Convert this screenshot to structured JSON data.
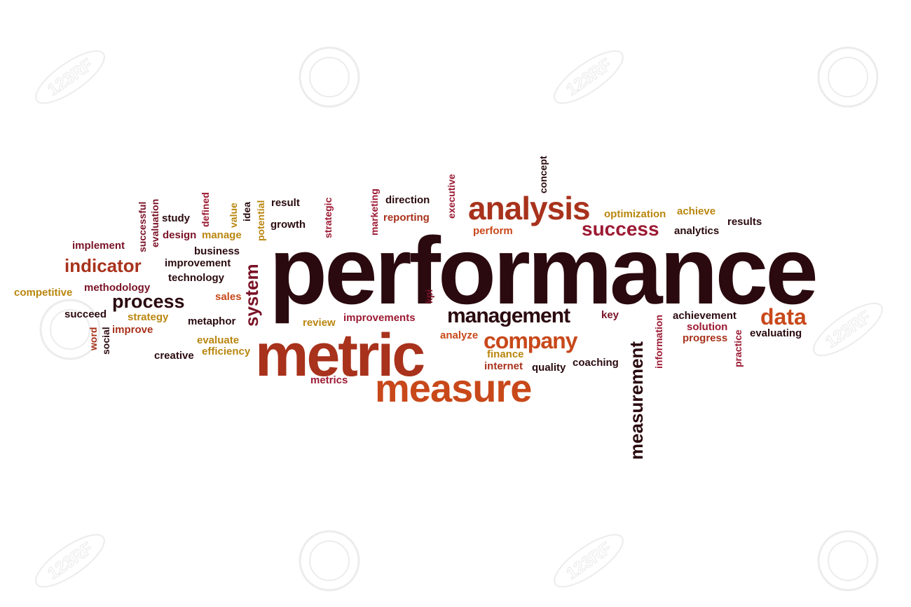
{
  "palette": {
    "dark": "#2a0a0f",
    "maroon": "#7a1226",
    "rust": "#a8321c",
    "orange": "#c8481a",
    "gold": "#b9860f",
    "crimson": "#9c1a33"
  },
  "watermark_text": "123RF",
  "words": {
    "performance": "performance",
    "metric": "metric",
    "measure": "measure",
    "analysis": "analysis",
    "success": "success",
    "management": "management",
    "company": "company",
    "data": "data",
    "indicator": "indicator",
    "process": "process",
    "system": "system",
    "measurement": "measurement",
    "implement": "implement",
    "improvement": "improvement",
    "technology": "technology",
    "methodology": "methodology",
    "competitive": "competitive",
    "sales": "sales",
    "succeed": "succeed",
    "strategy": "strategy",
    "improve": "improve",
    "metaphor": "metaphor",
    "word": "word",
    "social": "social",
    "evaluate": "evaluate",
    "efficiency": "efficiency",
    "creative": "creative",
    "business": "business",
    "study": "study",
    "design": "design",
    "manage": "manage",
    "successful": "successful",
    "evaluation": "evaluation",
    "defined": "defined",
    "value": "value",
    "idea": "idea",
    "potential": "potential",
    "result": "result",
    "growth": "growth",
    "strategic": "strategic",
    "marketing": "marketing",
    "direction": "direction",
    "reporting": "reporting",
    "executive": "executive",
    "concept": "concept",
    "perform": "perform",
    "optimization": "optimization",
    "achieve": "achieve",
    "results": "results",
    "analytics": "analytics",
    "review": "review",
    "improvements": "improvements",
    "kpi": "kpi",
    "analyze": "analyze",
    "finance": "finance",
    "internet": "internet",
    "quality": "quality",
    "coaching": "coaching",
    "metrics": "metrics",
    "key": "key",
    "information": "information",
    "achievement": "achievement",
    "solution": "solution",
    "progress": "progress",
    "practice": "practice",
    "evaluating": "evaluating"
  }
}
